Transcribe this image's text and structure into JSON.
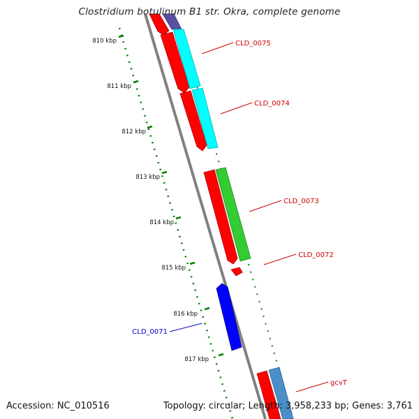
{
  "title": "Clostridium botulinum B1 str. Okra, complete genome",
  "footer": {
    "accession": "Accession: NC_010516",
    "summary": "Topology: circular; Length: 3,958,233 bp; Genes: 3,761"
  },
  "ticks": [
    "810 kbp",
    "811 kbp",
    "812 kbp",
    "813 kbp",
    "814 kbp",
    "815 kbp",
    "816 kbp",
    "817 kbp"
  ],
  "genes": {
    "CLD_0075": "CLD_0075",
    "CLD_0074": "CLD_0074",
    "CLD_0073": "CLD_0073",
    "CLD_0072": "CLD_0072",
    "CLD_0071": "CLD_0071",
    "gcvT": "gcvT"
  },
  "colors": {
    "cds": "#ff0000",
    "cyan_feature": "#00ffff",
    "green_feature": "#33cc33",
    "reverse_strand": "#0000ff",
    "purple_feature": "#5a4fa0",
    "steelblue_feature": "#4a8fc8",
    "label_forward": "#cc0000",
    "label_reverse": "#0000cc",
    "backbone": "#808080",
    "ruler": "#008000"
  }
}
